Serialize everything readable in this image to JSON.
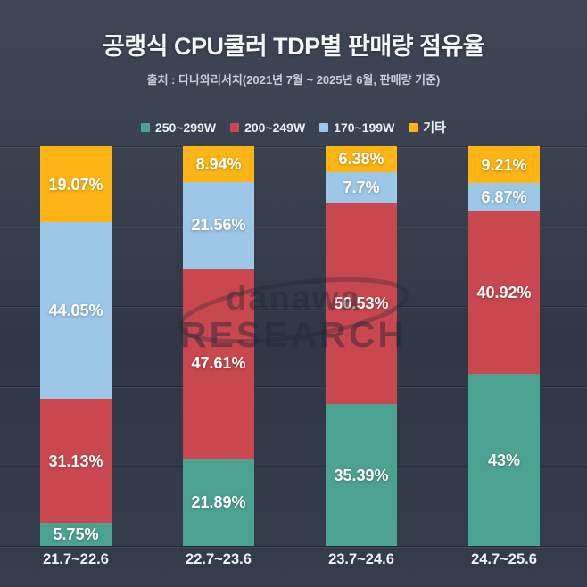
{
  "header": {
    "title": "공랭식 CPU쿨러 TDP별 판매량 점유율",
    "subtitle": "출처 : 다나와리서치(2021년 7월 ~ 2025년 6월, 판매량 기준)"
  },
  "watermark": {
    "line1": "danawa",
    "line2": "RESEARCH"
  },
  "colors": {
    "background_top": "#3e4656",
    "background_bottom": "#353c4b",
    "title_text": "#f5f7fa",
    "subtitle_text": "#c9cfd9",
    "label_text": "#ffffff",
    "teal": "#4ca391",
    "red": "#c9474e",
    "blue": "#9cc7e6",
    "yellow": "#fcb515"
  },
  "chart_data": {
    "type": "bar",
    "stacked": true,
    "title": "공랭식 CPU쿨러 TDP별 판매량 점유율",
    "subtitle": "출처 : 다나와리서치(2021년 7월 ~ 2025년 6월, 판매량 기준)",
    "xlabel": "",
    "ylabel": "",
    "ylim": [
      0,
      100
    ],
    "grid": true,
    "grid_interval": 20,
    "legend_position": "top",
    "value_suffix": "%",
    "categories": [
      "21.7~22.6",
      "22.7~23.6",
      "23.7~24.6",
      "24.7~25.6"
    ],
    "series": [
      {
        "name": "250~299W",
        "color": "#4ca391",
        "values": [
          5.75,
          21.89,
          35.39,
          43
        ]
      },
      {
        "name": "200~249W",
        "color": "#c9474e",
        "values": [
          31.13,
          47.61,
          50.53,
          40.92
        ]
      },
      {
        "name": "170~199W",
        "color": "#9cc7e6",
        "values": [
          44.05,
          21.56,
          7.7,
          6.87
        ]
      },
      {
        "name": "기타",
        "color": "#fcb515",
        "values": [
          19.07,
          8.94,
          6.38,
          9.21
        ]
      }
    ]
  }
}
